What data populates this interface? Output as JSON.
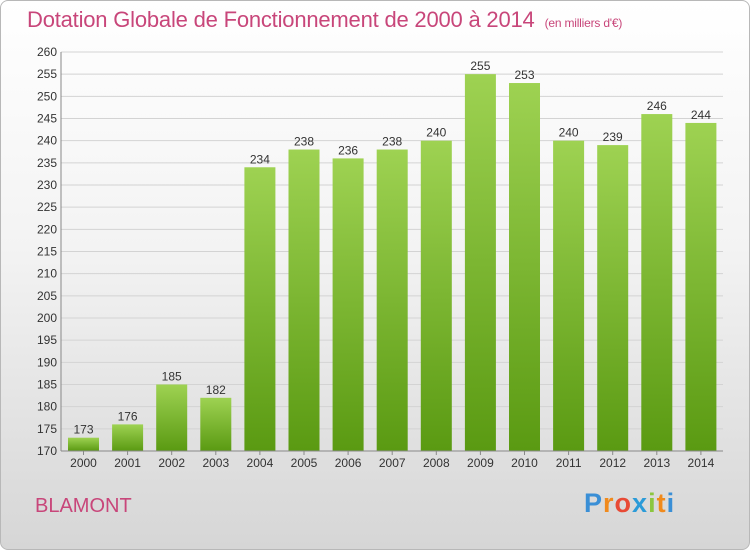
{
  "header": {
    "title": "Dotation Globale de Fonctionnement de 2000 à 2014",
    "unit": "(en milliers d'€)"
  },
  "commune": "BLAMONT",
  "logo": {
    "text": "Proxiti",
    "colors": [
      "#3a8fd6",
      "#f08a1c",
      "#e84a35",
      "#2b9bd8",
      "#8bc63f",
      "#f08a1c",
      "#3a8fd6"
    ]
  },
  "colors": {
    "bar_top": "#9ed252",
    "bar_bottom": "#5a9a12",
    "title": "#c8467a",
    "grid": "#d3d3d3"
  },
  "chart_data": {
    "type": "bar",
    "title": "Dotation Globale de Fonctionnement de 2000 à 2014",
    "subtitle": "(en milliers d'€)",
    "xlabel": "",
    "ylabel": "",
    "categories": [
      "2000",
      "2001",
      "2002",
      "2003",
      "2004",
      "2005",
      "2006",
      "2007",
      "2008",
      "2009",
      "2010",
      "2011",
      "2012",
      "2013",
      "2014"
    ],
    "values": [
      173,
      176,
      185,
      182,
      234,
      238,
      236,
      238,
      240,
      255,
      253,
      240,
      239,
      246,
      244
    ],
    "ylim": [
      170,
      260
    ],
    "yticks": [
      170,
      175,
      180,
      185,
      190,
      195,
      200,
      205,
      210,
      215,
      220,
      225,
      230,
      235,
      240,
      245,
      250,
      255,
      260
    ],
    "grid": true,
    "legend": "none"
  }
}
